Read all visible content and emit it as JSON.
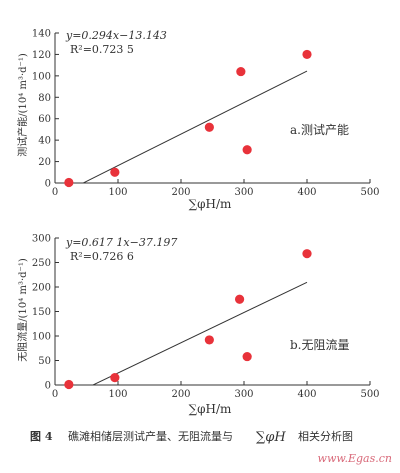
{
  "charts": [
    {
      "type": "scatter",
      "panel_label": "a.测试产能",
      "ylabel": "测试产能/(10⁴ m³·d⁻¹)",
      "xlabel": "∑φH/m",
      "equation": "y=0.294x−13.143",
      "r2": "R²=0.723 5",
      "xlim": [
        0,
        500
      ],
      "ylim": [
        0,
        140
      ],
      "xticks": [
        0,
        100,
        200,
        300,
        400,
        500
      ],
      "yticks": [
        0,
        20,
        40,
        60,
        80,
        100,
        120,
        140
      ],
      "points": [
        {
          "x": 22,
          "y": 0.5
        },
        {
          "x": 95,
          "y": 10
        },
        {
          "x": 245,
          "y": 52
        },
        {
          "x": 295,
          "y": 104
        },
        {
          "x": 305,
          "y": 31
        },
        {
          "x": 400,
          "y": 120
        }
      ],
      "trendline": {
        "slope": 0.294,
        "intercept": -13.143,
        "x_from": 45,
        "x_to": 400
      },
      "point_color": "#e8323a",
      "grid": false
    },
    {
      "type": "scatter",
      "panel_label": "b.无阻流量",
      "ylabel": "无阻流量/(10⁴ m³·d⁻¹)",
      "xlabel": "∑φH/m",
      "equation": "y=0.617 1x−37.197",
      "r2": "R²=0.726 6",
      "xlim": [
        0,
        500
      ],
      "ylim": [
        0,
        300
      ],
      "xticks": [
        0,
        100,
        200,
        300,
        400,
        500
      ],
      "yticks": [
        0,
        50,
        100,
        150,
        200,
        250,
        300
      ],
      "points": [
        {
          "x": 22,
          "y": 1
        },
        {
          "x": 95,
          "y": 15
        },
        {
          "x": 245,
          "y": 92
        },
        {
          "x": 293,
          "y": 175
        },
        {
          "x": 305,
          "y": 58
        },
        {
          "x": 400,
          "y": 268
        }
      ],
      "trendline": {
        "slope": 0.6171,
        "intercept": -37.197,
        "x_from": 60,
        "x_to": 400
      },
      "point_color": "#e8323a",
      "grid": false
    }
  ],
  "caption": {
    "fig": "图 4",
    "text_before": "礁滩相储层测试产量、无阻流量与",
    "symbol": "∑φH",
    "text_after": "相关分析图"
  },
  "watermark": "www.Egas.cn"
}
